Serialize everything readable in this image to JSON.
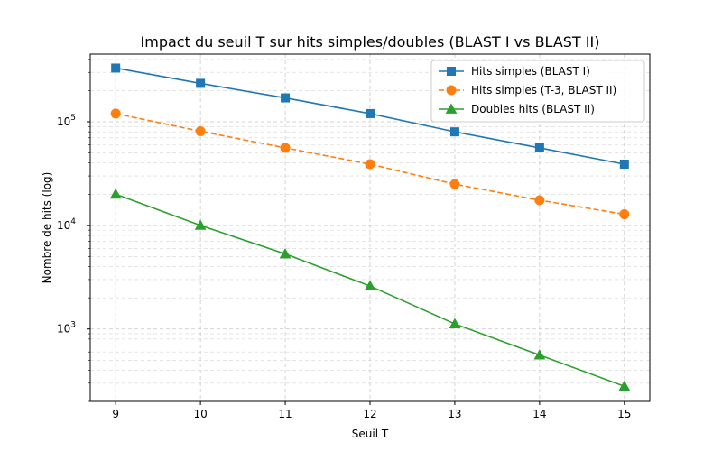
{
  "chart_data": {
    "type": "line",
    "title": "Impact du seuil T sur hits simples/doubles (BLAST I vs BLAST II)",
    "xlabel": "Seuil T",
    "ylabel": "Nombre de hits (log)",
    "x": [
      9,
      10,
      11,
      12,
      13,
      14,
      15
    ],
    "xlim": [
      8.7,
      15.3
    ],
    "ylim": [
      200,
      450000
    ],
    "yscale": "log",
    "grid": true,
    "legend_position": "top-right",
    "xticks": [
      "9",
      "10",
      "11",
      "12",
      "13",
      "14",
      "15"
    ],
    "yticks": [
      {
        "value": 1000,
        "base": "10",
        "exp": "3"
      },
      {
        "value": 10000,
        "base": "10",
        "exp": "4"
      },
      {
        "value": 100000,
        "base": "10",
        "exp": "5"
      }
    ],
    "series": [
      {
        "name": "Hits simples (BLAST I)",
        "values": [
          330000,
          235000,
          170000,
          120000,
          80000,
          56000,
          39000
        ],
        "color": "#1f77b4",
        "marker": "square",
        "linestyle": "solid"
      },
      {
        "name": "Hits simples (T-3, BLAST II)",
        "values": [
          120000,
          81000,
          56000,
          39000,
          25000,
          17500,
          12800
        ],
        "color": "#ff7f0e",
        "marker": "circle",
        "linestyle": "dashed"
      },
      {
        "name": "Doubles hits (BLAST II)",
        "values": [
          20000,
          10000,
          5300,
          2600,
          1120,
          560,
          280
        ],
        "color": "#2ca02c",
        "marker": "triangle",
        "linestyle": "solid"
      }
    ]
  }
}
